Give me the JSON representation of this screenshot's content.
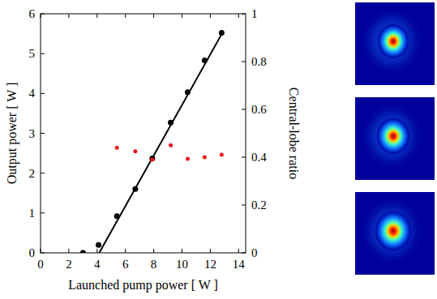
{
  "chart_data": {
    "type": "scatter",
    "x_label": "Launched pump power [ W ]",
    "y_label": "Output power [ W ]",
    "y2_label": "Central-lobe ratio",
    "xlim": [
      0,
      14.5
    ],
    "xticks": [
      0,
      2,
      4,
      6,
      8,
      10,
      12,
      14
    ],
    "ylim": [
      0,
      6
    ],
    "yticks": [
      0,
      1,
      2,
      3,
      4,
      5,
      6
    ],
    "y2lim": [
      0,
      1
    ],
    "y2ticks": [
      0,
      0.2,
      0.4,
      0.6,
      0.8,
      1
    ],
    "series": [
      {
        "type": "scatter",
        "color": "#000000",
        "marker": "circle",
        "x": [
          3.0,
          4.1,
          5.4,
          6.7,
          7.9,
          9.2,
          10.4,
          11.6,
          12.8
        ],
        "values": [
          0.0,
          0.2,
          0.92,
          1.6,
          2.37,
          3.27,
          4.03,
          4.83,
          5.52
        ]
      },
      {
        "type": "line",
        "color": "#000000",
        "line_style": "solid",
        "x": [
          4.15,
          12.9
        ],
        "values": [
          0.0,
          5.55
        ]
      },
      {
        "type": "scatter",
        "color": "#e8141c",
        "marker": "circle",
        "axis": "y2",
        "x": [
          5.4,
          6.7,
          7.9,
          9.2,
          10.4,
          11.6,
          12.8
        ],
        "values": [
          0.44,
          0.425,
          0.39,
          0.45,
          0.393,
          0.4,
          0.41
        ]
      }
    ]
  }
}
